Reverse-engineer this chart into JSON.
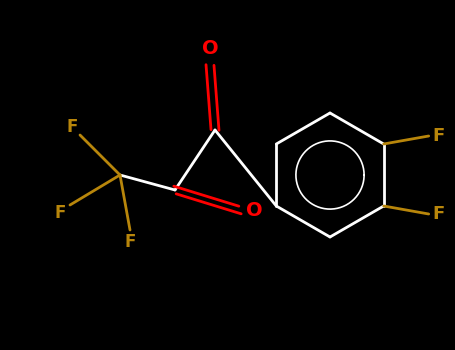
{
  "bg_color": "#000000",
  "bond_color": "#ffffff",
  "oxygen_color": "#ff0000",
  "fluorine_color": "#b8860b",
  "bond_width": 2.0,
  "figsize": [
    4.55,
    3.5
  ],
  "dpi": 100,
  "xlim": [
    0,
    455
  ],
  "ylim": [
    0,
    350
  ]
}
